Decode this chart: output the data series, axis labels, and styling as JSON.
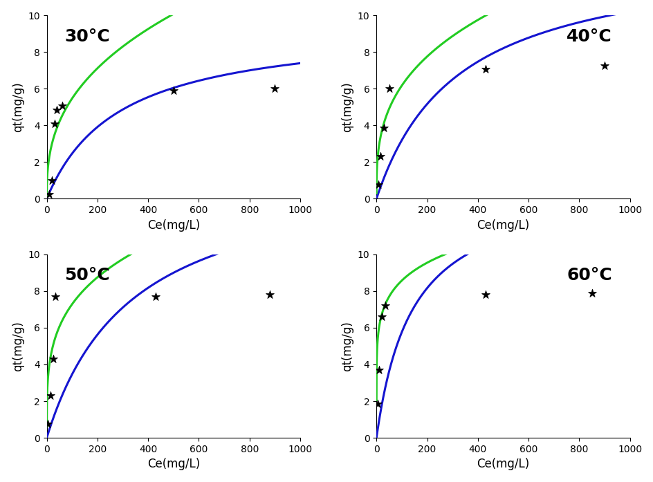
{
  "panels": [
    {
      "title": "30°C",
      "title_loc": "left",
      "xlim": [
        0,
        1000
      ],
      "ylim": [
        0,
        10
      ],
      "xticks": [
        0,
        200,
        400,
        600,
        800,
        1000
      ],
      "data_x": [
        10,
        20,
        30,
        40,
        60,
        500,
        900
      ],
      "data_y": [
        0.25,
        1.0,
        4.1,
        4.85,
        5.05,
        5.9,
        6.0
      ],
      "langmuir_qm": 9.5,
      "langmuir_KL": 0.0035,
      "freundlich_KF": 0.95,
      "freundlich_n": 0.38
    },
    {
      "title": "40°C",
      "title_loc": "right",
      "xlim": [
        0,
        1000
      ],
      "ylim": [
        0,
        10
      ],
      "xticks": [
        0,
        200,
        400,
        600,
        800,
        1000
      ],
      "data_x": [
        7,
        15,
        30,
        50,
        430,
        900
      ],
      "data_y": [
        0.75,
        2.3,
        3.85,
        6.0,
        7.05,
        7.25
      ],
      "langmuir_qm": 13.5,
      "langmuir_KL": 0.0031,
      "freundlich_KF": 1.35,
      "freundlich_n": 0.33
    },
    {
      "title": "50°C",
      "title_loc": "left",
      "xlim": [
        0,
        1000
      ],
      "ylim": [
        0,
        10
      ],
      "xticks": [
        0,
        200,
        400,
        600,
        800,
        1000
      ],
      "data_x": [
        5,
        15,
        25,
        35,
        430,
        880
      ],
      "data_y": [
        0.75,
        2.3,
        4.3,
        7.7,
        7.7,
        7.8
      ],
      "langmuir_qm": 15.0,
      "langmuir_KL": 0.003,
      "freundlich_KF": 2.15,
      "freundlich_n": 0.265
    },
    {
      "title": "60°C",
      "title_loc": "right",
      "xlim": [
        0,
        1000
      ],
      "ylim": [
        0,
        10
      ],
      "xticks": [
        0,
        200,
        400,
        600,
        800,
        1000
      ],
      "data_x": [
        5,
        10,
        20,
        35,
        430,
        850
      ],
      "data_y": [
        1.85,
        3.7,
        6.6,
        7.2,
        7.8,
        7.9
      ],
      "langmuir_qm": 14.0,
      "langmuir_KL": 0.007,
      "freundlich_KF": 4.2,
      "freundlich_n": 0.155
    }
  ],
  "blue_color": "#1515d0",
  "green_color": "#22cc22",
  "marker_color": "black",
  "marker": "*",
  "marker_size": 9,
  "ylabel": "qt(mg/g)",
  "xlabel": "Ce(mg/L)",
  "title_fontsize": 18,
  "label_fontsize": 12,
  "tick_fontsize": 10,
  "linewidth": 2.2
}
